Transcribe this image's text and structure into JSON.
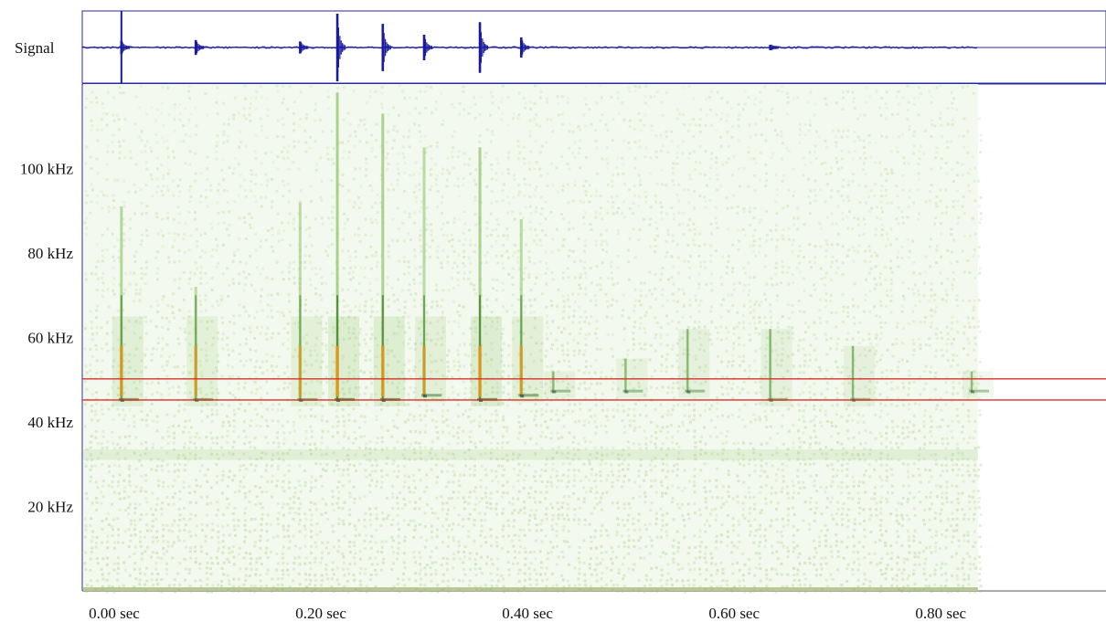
{
  "colors": {
    "signal": "#1a1a9c",
    "frame": "#2a2aa0",
    "band_marker": "#d9302a",
    "noise": "#8fc46a",
    "strong": "#3f7f2a",
    "peak": "#e89a1c"
  },
  "chart_data": {
    "type": "spectrogram",
    "signal_label": "Signal",
    "x_ticks": [
      {
        "value": 0.0,
        "label": "0.00 sec"
      },
      {
        "value": 0.2,
        "label": "0.20 sec"
      },
      {
        "value": 0.4,
        "label": "0.40 sec"
      },
      {
        "value": 0.6,
        "label": "0.60 sec"
      },
      {
        "value": 0.8,
        "label": "0.80 sec"
      }
    ],
    "y_ticks": [
      {
        "value": 20,
        "label": "20 kHz"
      },
      {
        "value": 40,
        "label": "40 kHz"
      },
      {
        "value": 60,
        "label": "60 kHz"
      },
      {
        "value": 80,
        "label": "80 kHz"
      },
      {
        "value": 100,
        "label": "100 kHz"
      }
    ],
    "xlim": [
      0.0,
      0.99
    ],
    "data_end_time": 0.866,
    "ylim": [
      0,
      120
    ],
    "band_markers_khz": [
      50.2,
      45.2
    ],
    "cursor_time": 0.037,
    "calls": [
      {
        "time": 0.037,
        "f_high": 91,
        "f_low": 45,
        "intensity": 0.7
      },
      {
        "time": 0.109,
        "f_high": 72,
        "f_low": 45,
        "intensity": 0.5
      },
      {
        "time": 0.21,
        "f_high": 92,
        "f_low": 45,
        "intensity": 0.5
      },
      {
        "time": 0.246,
        "f_high": 118,
        "f_low": 45,
        "intensity": 1.0
      },
      {
        "time": 0.29,
        "f_high": 113,
        "f_low": 45,
        "intensity": 0.9
      },
      {
        "time": 0.33,
        "f_high": 105,
        "f_low": 46,
        "intensity": 0.55
      },
      {
        "time": 0.384,
        "f_high": 105,
        "f_low": 45,
        "intensity": 0.95
      },
      {
        "time": 0.424,
        "f_high": 88,
        "f_low": 46,
        "intensity": 0.55
      },
      {
        "time": 0.455,
        "f_high": 52,
        "f_low": 47,
        "intensity": 0.25
      },
      {
        "time": 0.525,
        "f_high": 55,
        "f_low": 47,
        "intensity": 0.2
      },
      {
        "time": 0.585,
        "f_high": 62,
        "f_low": 47,
        "intensity": 0.25
      },
      {
        "time": 0.665,
        "f_high": 62,
        "f_low": 45,
        "intensity": 0.3
      },
      {
        "time": 0.745,
        "f_high": 58,
        "f_low": 45,
        "intensity": 0.25
      },
      {
        "time": 0.86,
        "f_high": 52,
        "f_low": 47,
        "intensity": 0.15
      }
    ],
    "waveform_bursts": [
      {
        "time": 0.037,
        "amplitude": 0.2
      },
      {
        "time": 0.109,
        "amplitude": 0.22
      },
      {
        "time": 0.21,
        "amplitude": 0.18
      },
      {
        "time": 0.246,
        "amplitude": 1.0
      },
      {
        "time": 0.29,
        "amplitude": 0.7
      },
      {
        "time": 0.33,
        "amplitude": 0.38
      },
      {
        "time": 0.384,
        "amplitude": 0.75
      },
      {
        "time": 0.424,
        "amplitude": 0.3
      },
      {
        "time": 0.665,
        "amplitude": 0.08
      }
    ]
  }
}
